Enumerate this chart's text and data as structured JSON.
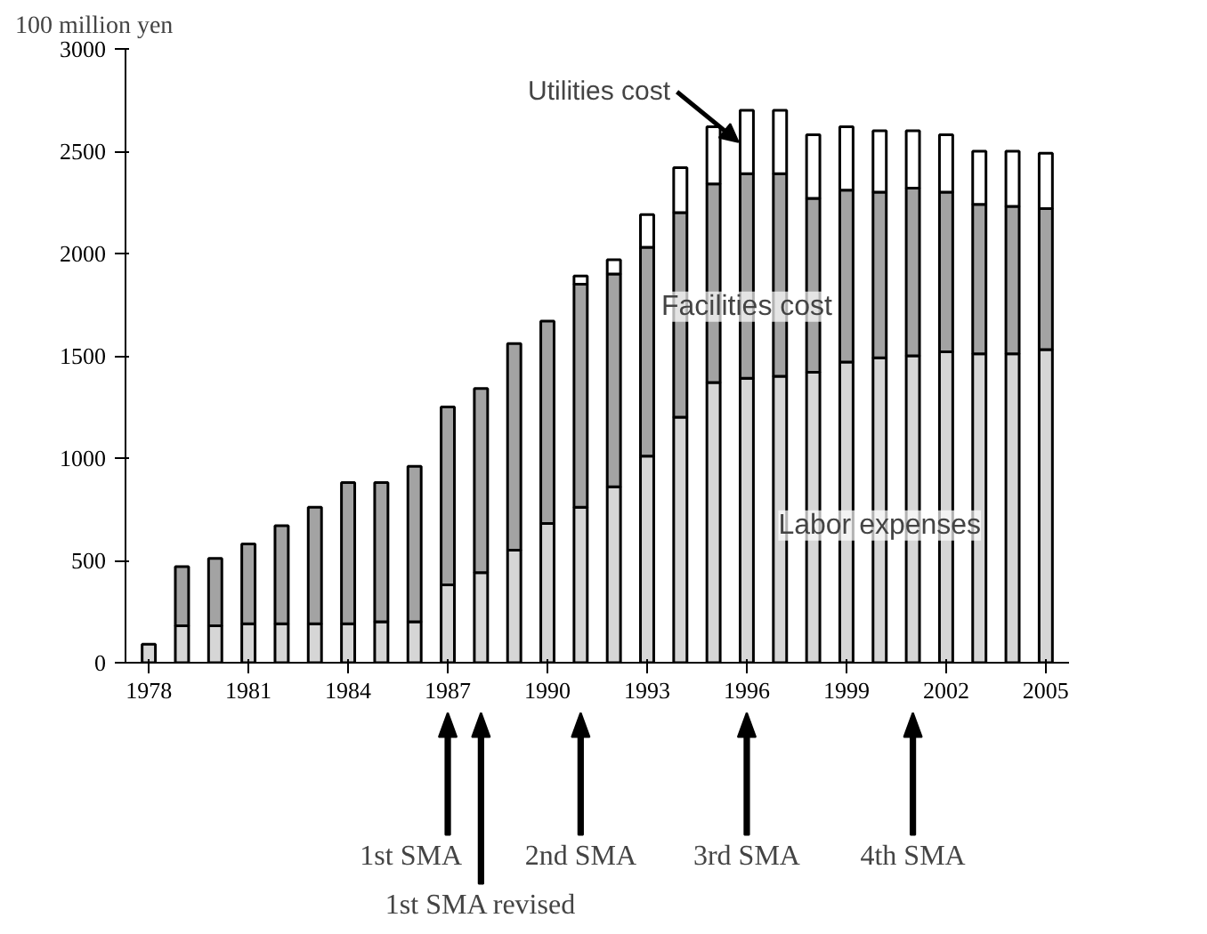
{
  "chart_data": {
    "type": "bar",
    "stacked": true,
    "ylabel": "100 million yen",
    "x": [
      1978,
      1979,
      1980,
      1981,
      1982,
      1983,
      1984,
      1985,
      1986,
      1987,
      1988,
      1989,
      1990,
      1991,
      1992,
      1993,
      1994,
      1995,
      1996,
      1997,
      1998,
      1999,
      2000,
      2001,
      2002,
      2003,
      2004,
      2005
    ],
    "series": [
      {
        "name": "Labor expenses",
        "color": "#d6d6d6",
        "values": [
          90,
          180,
          180,
          190,
          190,
          190,
          190,
          200,
          200,
          380,
          440,
          550,
          680,
          760,
          860,
          1010,
          1200,
          1370,
          1390,
          1400,
          1420,
          1470,
          1490,
          1500,
          1520,
          1510,
          1510,
          1530
        ]
      },
      {
        "name": "Facilities cost",
        "color": "#a3a3a3",
        "values": [
          null,
          290,
          330,
          390,
          480,
          570,
          690,
          680,
          760,
          870,
          900,
          1010,
          990,
          1090,
          1040,
          1020,
          1000,
          970,
          1000,
          990,
          850,
          840,
          810,
          820,
          780,
          730,
          720,
          690
        ]
      },
      {
        "name": "Utilities cost",
        "color": "#ffffff",
        "values": [
          null,
          null,
          null,
          null,
          null,
          null,
          null,
          null,
          null,
          null,
          null,
          null,
          null,
          40,
          70,
          160,
          220,
          280,
          310,
          310,
          310,
          310,
          300,
          280,
          280,
          260,
          270,
          270
        ]
      }
    ],
    "xlim": [
      1977.3,
      2005.7
    ],
    "xticks": [
      1978,
      1981,
      1984,
      1987,
      1990,
      1993,
      1996,
      1999,
      2002,
      2005
    ],
    "ylim": [
      0,
      3000
    ],
    "yticks": [
      0,
      500,
      1000,
      1500,
      2000,
      2500,
      3000
    ],
    "grid": false,
    "ref_lines": [
      {
        "axis": "x",
        "value": 1987,
        "label": "1st SMA"
      },
      {
        "axis": "x",
        "value": 1988,
        "label": "1st SMA revised"
      },
      {
        "axis": "x",
        "value": 1991,
        "label": "2nd SMA"
      },
      {
        "axis": "x",
        "value": 1996,
        "label": "3rd SMA"
      },
      {
        "axis": "x",
        "value": 2001,
        "label": "4th SMA"
      }
    ]
  }
}
